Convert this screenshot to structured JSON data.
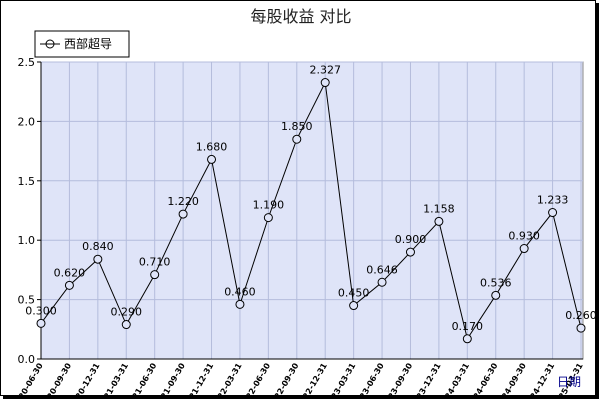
{
  "chart_data": {
    "type": "line",
    "title": "每股收益  对比",
    "xlabel": "日期",
    "ylabel": "",
    "ylim": [
      0,
      2.5
    ],
    "y_ticks": [
      "0.0",
      "0.5",
      "1.0",
      "1.5",
      "2.0",
      "2.5"
    ],
    "grid": true,
    "legend_position": "top-left",
    "categories": [
      "2020-06-30",
      "2020-09-30",
      "2020-12-31",
      "2021-03-31",
      "2021-06-30",
      "2021-09-30",
      "2021-12-31",
      "2022-03-31",
      "2022-06-30",
      "2022-09-30",
      "2022-12-31",
      "2023-03-31",
      "2023-06-30",
      "2023-09-30",
      "2023-12-31",
      "2024-03-31",
      "2024-06-30",
      "2024-09-30",
      "2024-12-31",
      "2025-03-31"
    ],
    "series": [
      {
        "name": "西部超导",
        "values": [
          0.3,
          0.62,
          0.84,
          0.29,
          0.71,
          1.22,
          1.68,
          0.46,
          1.19,
          1.85,
          2.327,
          0.45,
          0.646,
          0.9,
          1.158,
          0.17,
          0.536,
          0.93,
          1.233,
          0.26
        ],
        "labels": [
          "0.300",
          "0.620",
          "0.840",
          "0.290",
          "0.710",
          "1.220",
          "1.680",
          "0.460",
          "1.190",
          "1.850",
          "2.327",
          "0.450",
          "0.646",
          "0.900",
          "1.158",
          "0.170",
          "0.536",
          "0.930",
          "1.233",
          "0.260"
        ]
      }
    ]
  },
  "colors": {
    "plot_bg": "#dfe4f8",
    "grid": "#b4bcdc",
    "line": "#000000",
    "axis_label": "#00008b"
  }
}
